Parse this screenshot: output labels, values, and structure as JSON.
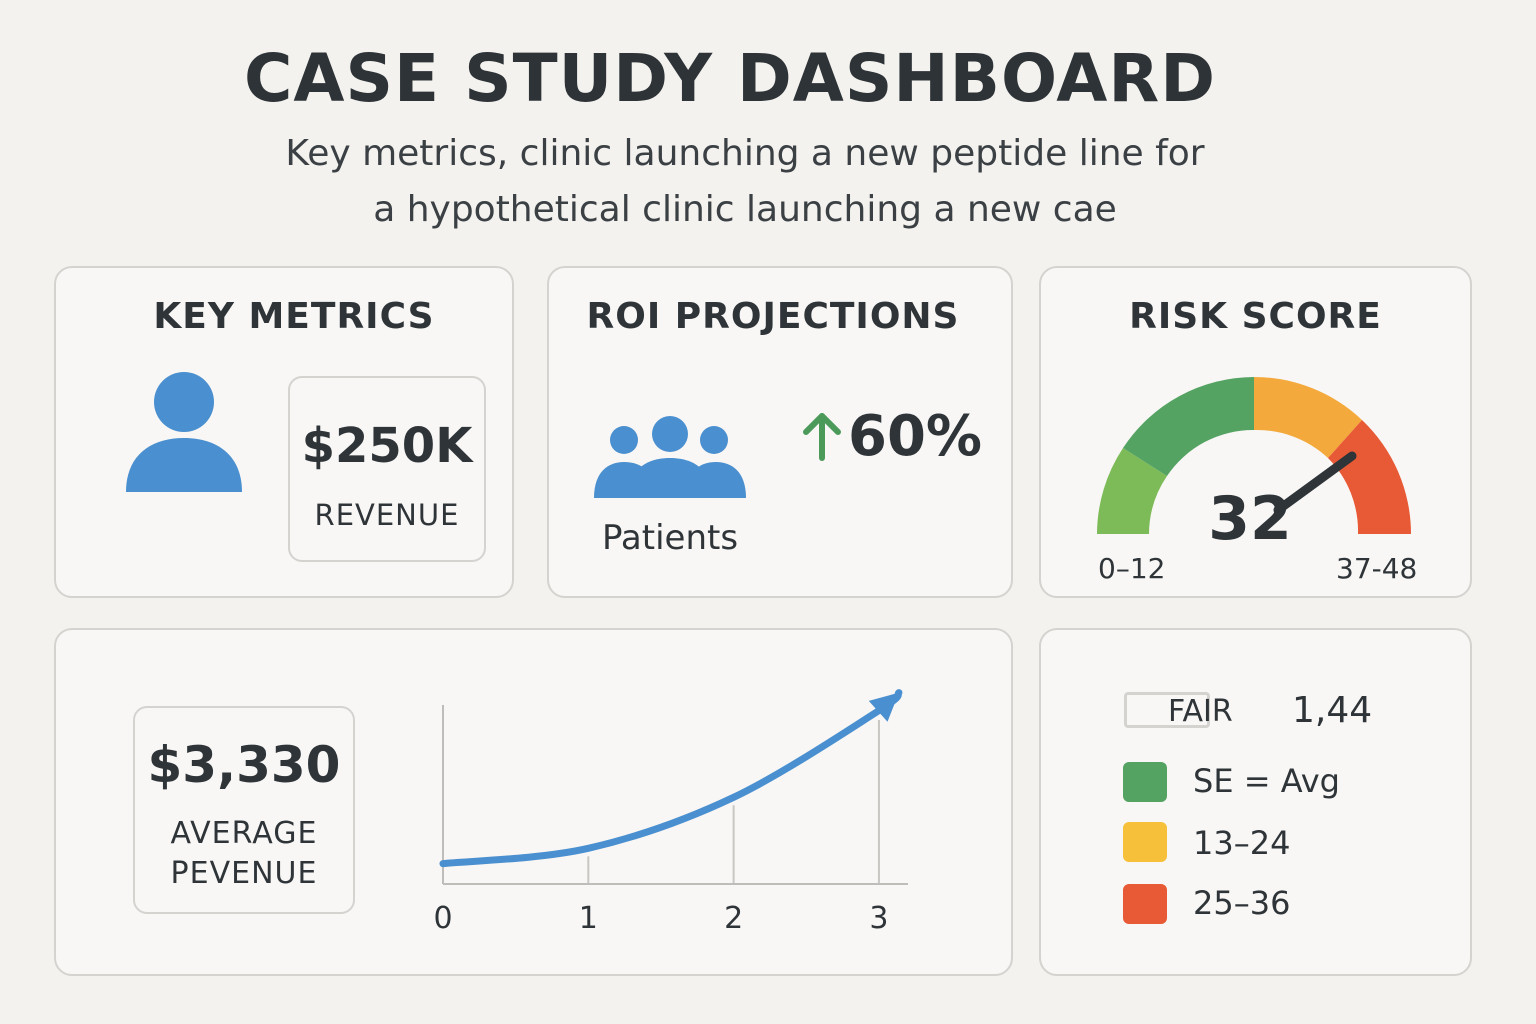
{
  "header": {
    "title": "CASE STUDY DASHBOARD",
    "subtitle_line1": "Key metrics, clinic launching a new peptide line for",
    "subtitle_line2": "a hypothetical clinic launching a new cae"
  },
  "key_metrics": {
    "title": "KEY METRICS",
    "icon": "user-icon",
    "revenue_value": "$250K",
    "revenue_label": "REVENUE"
  },
  "roi": {
    "title": "ROI PROJECTIONS",
    "icon": "group-icon",
    "patients_label": "Patients",
    "growth_icon": "arrow-up-icon",
    "growth_value": "60%"
  },
  "risk": {
    "title": "RISK SCORE",
    "score": "32",
    "range_min_label": "0–12",
    "range_max_label": "37-48",
    "gauge_colors": [
      "#7dbb59",
      "#55a362",
      "#f3a93c",
      "#e85a35"
    ]
  },
  "average": {
    "value": "$3,330",
    "label_line1": "AVERAGE",
    "label_line2": "PEVENUE"
  },
  "chart_data": {
    "type": "line",
    "x": [
      0,
      1,
      2,
      3
    ],
    "x_tick_labels": [
      "0",
      "1",
      "2",
      "3"
    ],
    "series": [
      {
        "values": [
          0.2,
          0.35,
          0.85,
          1.7
        ],
        "color": "#4a8fcf"
      }
    ],
    "xlim": [
      0,
      3.2
    ],
    "ylim": [
      0,
      2
    ],
    "grid": "vertical lines at x = 1, 2, 3",
    "arrow_end": true
  },
  "legend": {
    "items": [
      {
        "label": "FAIR",
        "value": "1,44",
        "color": "#f8f7f5",
        "outlined": true
      },
      {
        "label": "SE = Avg",
        "value": "",
        "color": "#55a362"
      },
      {
        "label": "13–24",
        "value": "",
        "color": "#f6c03a"
      },
      {
        "label": "25–36",
        "value": "",
        "color": "#e85a35"
      }
    ]
  },
  "colors": {
    "accent_blue": "#4a8fcf",
    "up_green": "#4c9a5a",
    "background": "#f4f2ee"
  }
}
